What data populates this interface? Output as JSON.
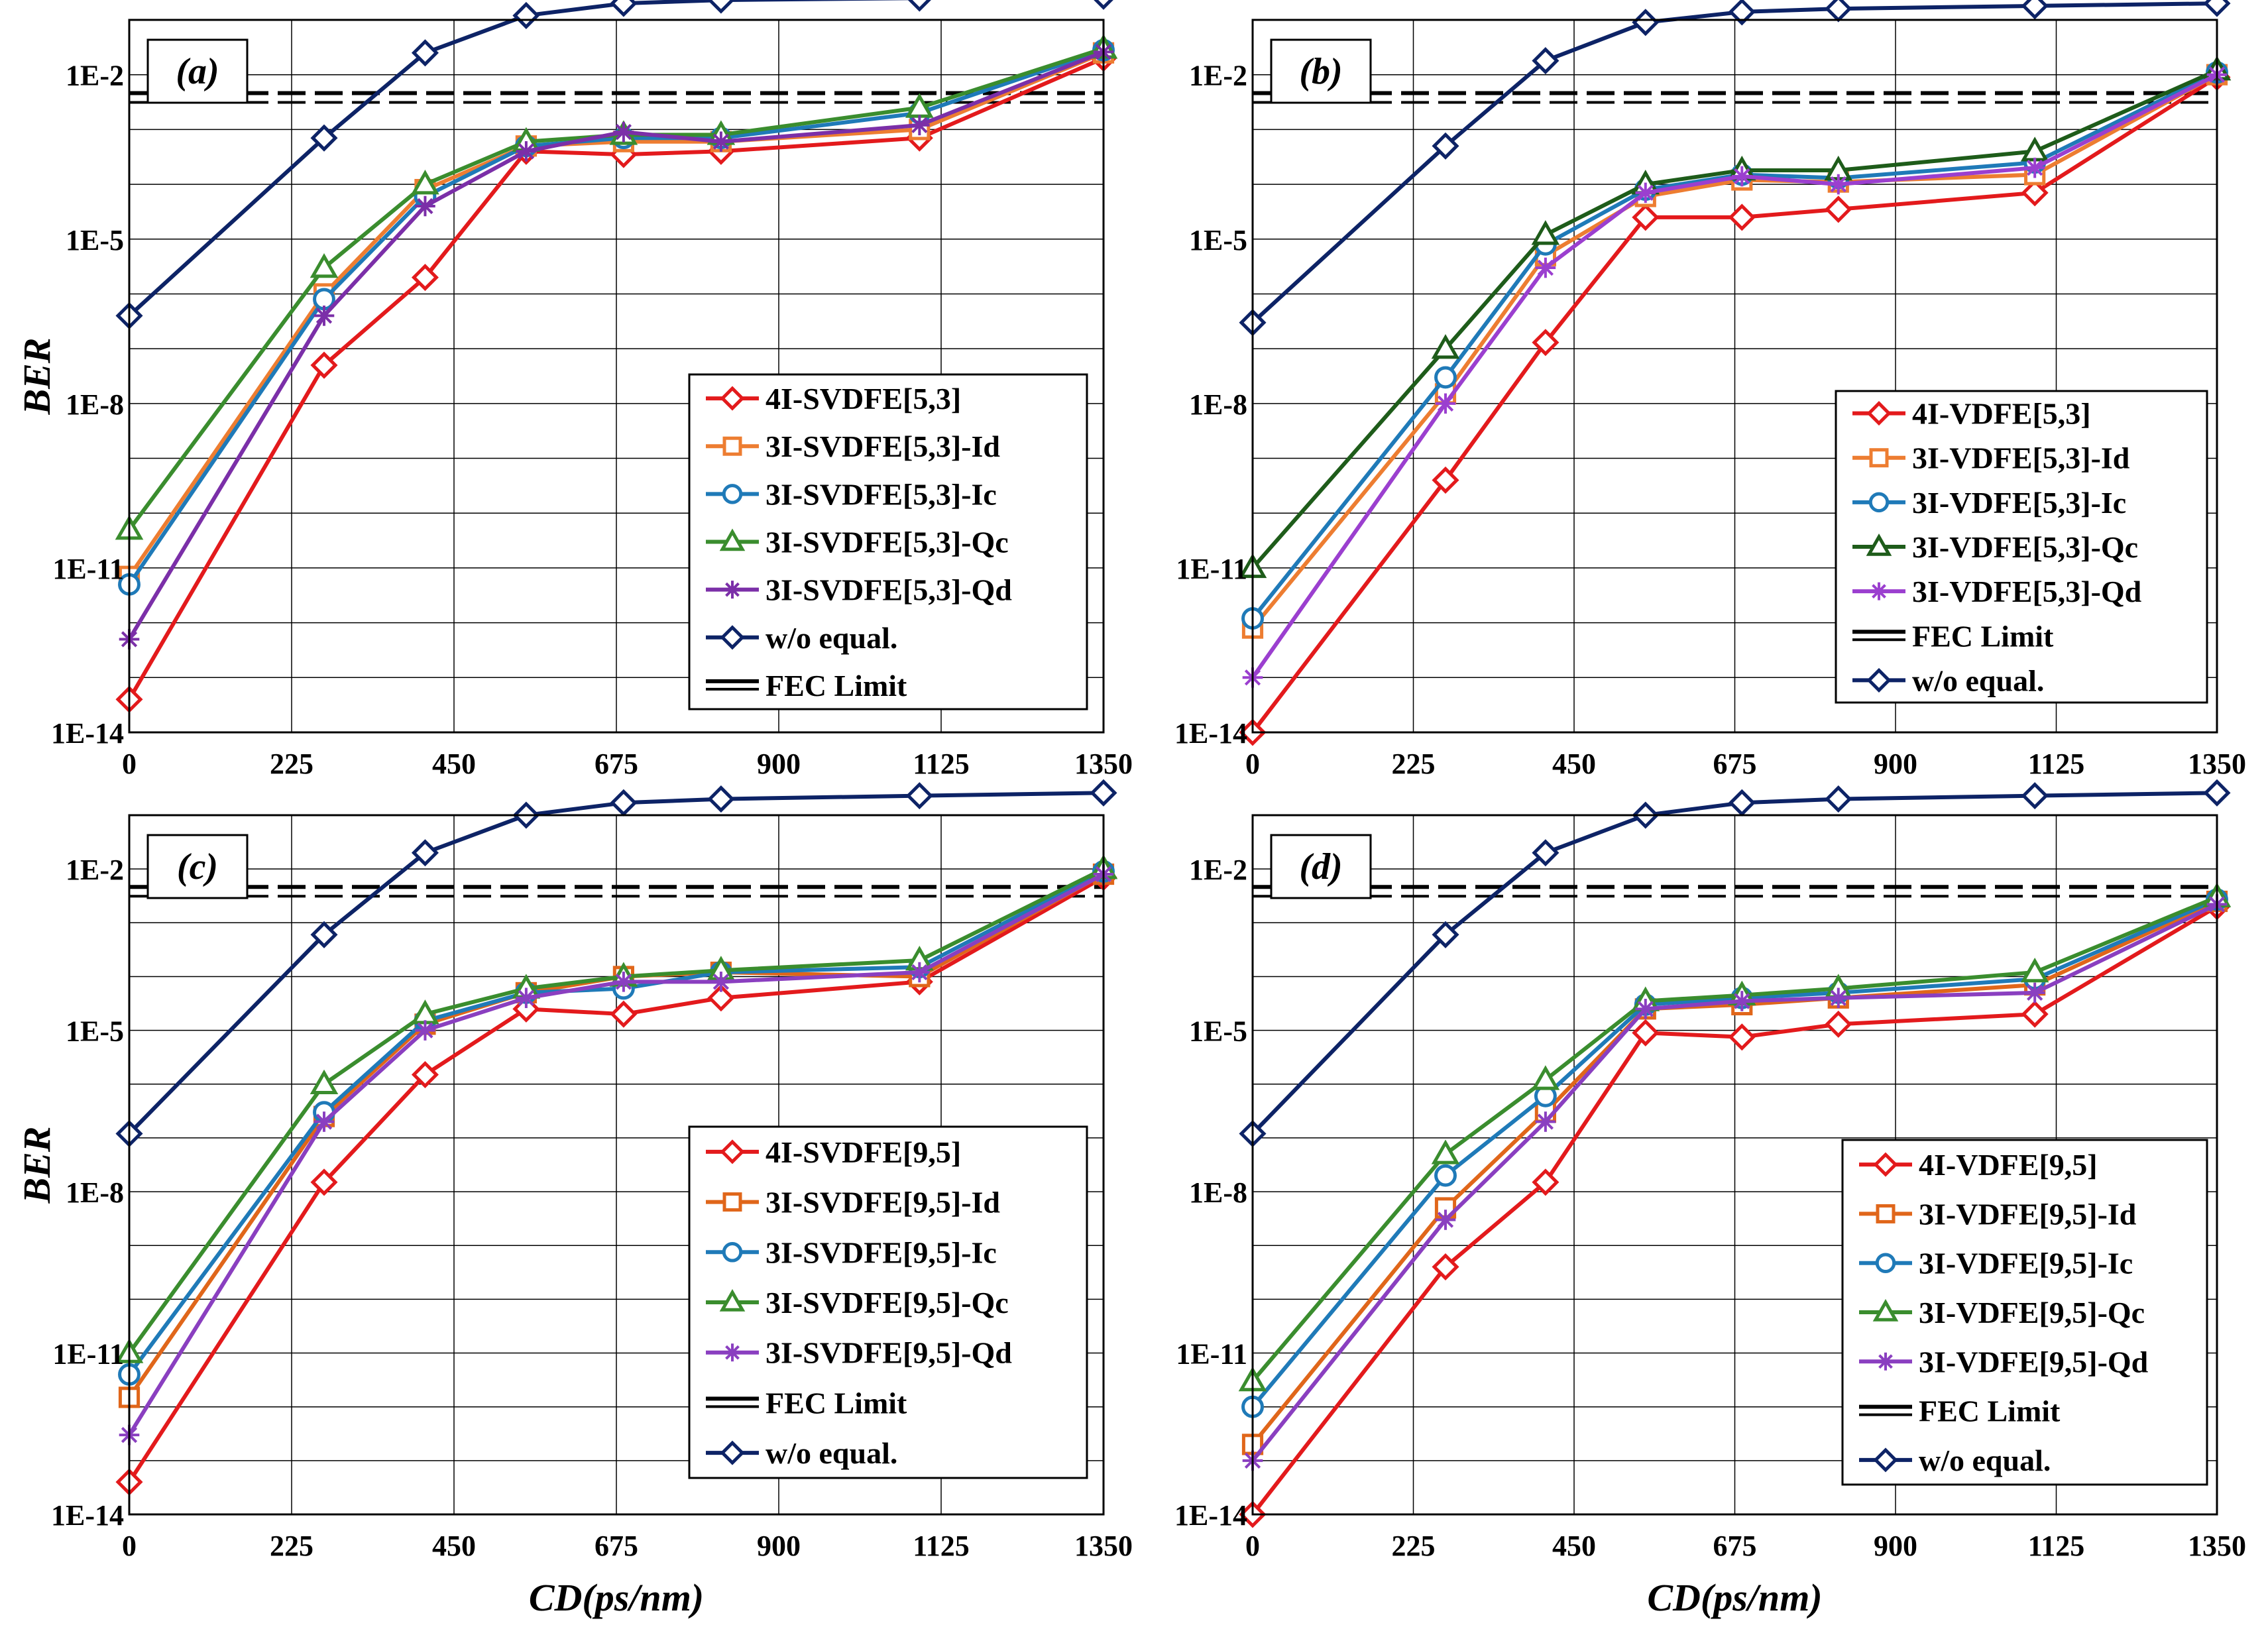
{
  "figure": {
    "xlabel": "CD(ps/nm)",
    "ylabel": "BER"
  },
  "chart_data": [
    {
      "type": "line",
      "panel_label": "(a)",
      "xlabel": "",
      "ylabel": "BER",
      "xlim": [
        0,
        1350
      ],
      "ylim_log10": [
        -14,
        -1
      ],
      "xticks": [
        "0",
        "225",
        "450",
        "675",
        "900",
        "1125",
        "1350"
      ],
      "yticks": [
        "1E-14",
        "1E-11",
        "1E-8",
        "1E-5",
        "1E-2"
      ],
      "grid": true,
      "legend_position": "lower-right",
      "fec_limit": 0.0038,
      "x": [
        0,
        270,
        410,
        550,
        685,
        820,
        1095,
        1350
      ],
      "series": [
        {
          "name": "4I-SVDFE[5,3]",
          "color": "#e31a1c",
          "marker": "diamond",
          "values": [
            4e-14,
            5e-08,
            2e-06,
            0.0004,
            0.00035,
            0.0004,
            0.0007,
            0.02
          ]
        },
        {
          "name": "3I-SVDFE[5,3]-Id",
          "color": "#ed7d31",
          "marker": "square",
          "values": [
            7e-12,
            1e-06,
            8e-05,
            0.0005,
            0.0006,
            0.0006,
            0.001,
            0.025
          ]
        },
        {
          "name": "3I-SVDFE[5,3]-Ic",
          "color": "#1f7ab8",
          "marker": "circle",
          "values": [
            5e-12,
            8e-07,
            6e-05,
            0.0005,
            0.0007,
            0.0007,
            0.002,
            0.028
          ]
        },
        {
          "name": "3I-SVDFE[5,3]-Qc",
          "color": "#3a8d2e",
          "marker": "triangle",
          "values": [
            5e-11,
            3e-06,
            0.0001,
            0.0006,
            0.0008,
            0.0008,
            0.0025,
            0.03
          ]
        },
        {
          "name": "3I-SVDFE[5,3]-Qd",
          "color": "#7b2fa8",
          "marker": "asterisk",
          "values": [
            5e-13,
            4e-07,
            4e-05,
            0.0004,
            0.0009,
            0.0006,
            0.0012,
            0.026
          ]
        },
        {
          "name": "w/o equal.",
          "color": "#0d2366",
          "marker": "diamond",
          "values": [
            4e-07,
            0.0007,
            0.025,
            0.12,
            0.2,
            0.23,
            0.25,
            0.27
          ]
        }
      ],
      "fec_name": "FEC Limit"
    },
    {
      "type": "line",
      "panel_label": "(b)",
      "xlabel": "",
      "ylabel": "",
      "xlim": [
        0,
        1350
      ],
      "ylim_log10": [
        -14,
        -1
      ],
      "xticks": [
        "0",
        "225",
        "450",
        "675",
        "900",
        "1125",
        "1350"
      ],
      "yticks": [
        "1E-14",
        "1E-11",
        "1E-8",
        "1E-5",
        "1E-2"
      ],
      "grid": true,
      "legend_position": "lower-right",
      "fec_limit": 0.0038,
      "x": [
        0,
        270,
        410,
        550,
        685,
        820,
        1095,
        1350
      ],
      "series": [
        {
          "name": "4I-VDFE[5,3]",
          "color": "#e31a1c",
          "marker": "diamond",
          "values": [
            1e-14,
            4e-10,
            1.3e-07,
            2.5e-05,
            2.5e-05,
            3.5e-05,
            7e-05,
            0.009
          ]
        },
        {
          "name": "3I-VDFE[5,3]-Id",
          "color": "#ed7d31",
          "marker": "square",
          "values": [
            8e-13,
            1.5e-08,
            5e-06,
            6e-05,
            0.00012,
            0.00011,
            0.00015,
            0.01
          ]
        },
        {
          "name": "3I-VDFE[5,3]-Ic",
          "color": "#1f7ab8",
          "marker": "circle",
          "values": [
            1.2e-12,
            3e-08,
            8e-06,
            8e-05,
            0.00015,
            0.00013,
            0.00025,
            0.011
          ]
        },
        {
          "name": "3I-VDFE[5,3]-Qc",
          "color": "#1e5c1a",
          "marker": "triangle",
          "values": [
            1e-11,
            1e-07,
            1.2e-05,
            0.0001,
            0.00018,
            0.00018,
            0.0004,
            0.012
          ]
        },
        {
          "name": "3I-VDFE[5,3]-Qd",
          "color": "#9b3fcf",
          "marker": "asterisk",
          "values": [
            1e-13,
            1e-08,
            3e-06,
            7e-05,
            0.00014,
            0.0001,
            0.0002,
            0.01
          ]
        },
        {
          "name": "w/o equal.",
          "color": "#0d2366",
          "marker": "diamond",
          "values": [
            3e-07,
            0.0005,
            0.018,
            0.09,
            0.14,
            0.16,
            0.18,
            0.2
          ]
        }
      ],
      "fec_name": "FEC Limit"
    },
    {
      "type": "line",
      "panel_label": "(c)",
      "xlabel": "CD(ps/nm)",
      "ylabel": "BER",
      "xlim": [
        0,
        1350
      ],
      "ylim_log10": [
        -14,
        -1
      ],
      "xticks": [
        "0",
        "225",
        "450",
        "675",
        "900",
        "1125",
        "1350"
      ],
      "yticks": [
        "1E-14",
        "1E-11",
        "1E-8",
        "1E-5",
        "1E-2"
      ],
      "grid": true,
      "legend_position": "lower-right",
      "fec_limit": 0.0038,
      "x": [
        0,
        270,
        410,
        550,
        685,
        820,
        1095,
        1350
      ],
      "series": [
        {
          "name": "4I-SVDFE[9,5]",
          "color": "#e31a1c",
          "marker": "diamond",
          "values": [
            4e-14,
            1.5e-08,
            1.5e-06,
            2.5e-05,
            2e-05,
            4e-05,
            8e-05,
            0.007
          ]
        },
        {
          "name": "3I-SVDFE[9,5]-Id",
          "color": "#e0661a",
          "marker": "square",
          "values": [
            1.5e-12,
            2.5e-07,
            1.3e-05,
            5e-05,
            0.0001,
            0.00012,
            0.0001,
            0.008
          ]
        },
        {
          "name": "3I-SVDFE[9,5]-Ic",
          "color": "#1f7ab8",
          "marker": "circle",
          "values": [
            4e-12,
            3e-07,
            1.5e-05,
            5e-05,
            6e-05,
            0.00012,
            0.00015,
            0.009
          ]
        },
        {
          "name": "3I-SVDFE[9,5]-Qc",
          "color": "#3a8d2e",
          "marker": "triangle",
          "values": [
            1e-11,
            1e-06,
            2e-05,
            6e-05,
            0.0001,
            0.00013,
            0.0002,
            0.01
          ]
        },
        {
          "name": "3I-SVDFE[9,5]-Qd",
          "color": "#8a3fc0",
          "marker": "asterisk",
          "values": [
            3e-13,
            2e-07,
            1e-05,
            4e-05,
            8e-05,
            8e-05,
            0.00012,
            0.008
          ]
        },
        {
          "name": "w/o equal.",
          "color": "#0d2366",
          "marker": "diamond",
          "values": [
            1.2e-07,
            0.0006,
            0.02,
            0.1,
            0.17,
            0.2,
            0.23,
            0.26
          ]
        }
      ],
      "fec_name": "FEC Limit"
    },
    {
      "type": "line",
      "panel_label": "(d)",
      "xlabel": "CD(ps/nm)",
      "ylabel": "",
      "xlim": [
        0,
        1350
      ],
      "ylim_log10": [
        -14,
        -1
      ],
      "xticks": [
        "0",
        "225",
        "450",
        "675",
        "900",
        "1125",
        "1350"
      ],
      "yticks": [
        "1E-14",
        "1E-11",
        "1E-8",
        "1E-5",
        "1E-2"
      ],
      "grid": true,
      "legend_position": "lower-right",
      "fec_limit": 0.0038,
      "x": [
        0,
        270,
        410,
        550,
        685,
        820,
        1095,
        1350
      ],
      "series": [
        {
          "name": "4I-VDFE[9,5]",
          "color": "#e31a1c",
          "marker": "diamond",
          "values": [
            1e-14,
            4e-10,
            1.5e-08,
            9e-06,
            7.5e-06,
            1.3e-05,
            2e-05,
            0.002
          ]
        },
        {
          "name": "3I-VDFE[9,5]-Id",
          "color": "#e0661a",
          "marker": "square",
          "values": [
            2e-13,
            5e-09,
            3e-07,
            2.5e-05,
            3e-05,
            4e-05,
            7e-05,
            0.0025
          ]
        },
        {
          "name": "3I-VDFE[9,5]-Ic",
          "color": "#1f7ab8",
          "marker": "circle",
          "values": [
            1e-12,
            2e-08,
            6e-07,
            3e-05,
            4e-05,
            5e-05,
            9e-05,
            0.0027
          ]
        },
        {
          "name": "3I-VDFE[9,5]-Qc",
          "color": "#3a8d2e",
          "marker": "triangle",
          "values": [
            3e-12,
            5e-08,
            1.2e-06,
            3.5e-05,
            4.5e-05,
            6e-05,
            0.00012,
            0.003
          ]
        },
        {
          "name": "3I-VDFE[9,5]-Qd",
          "color": "#8a3fc0",
          "marker": "asterisk",
          "values": [
            1e-13,
            3e-09,
            2e-07,
            2.5e-05,
            3.5e-05,
            4e-05,
            5e-05,
            0.0022
          ]
        },
        {
          "name": "w/o equal.",
          "color": "#0d2366",
          "marker": "diamond",
          "values": [
            1.2e-07,
            0.0006,
            0.02,
            0.1,
            0.17,
            0.2,
            0.23,
            0.26
          ]
        }
      ],
      "fec_name": "FEC Limit"
    }
  ]
}
